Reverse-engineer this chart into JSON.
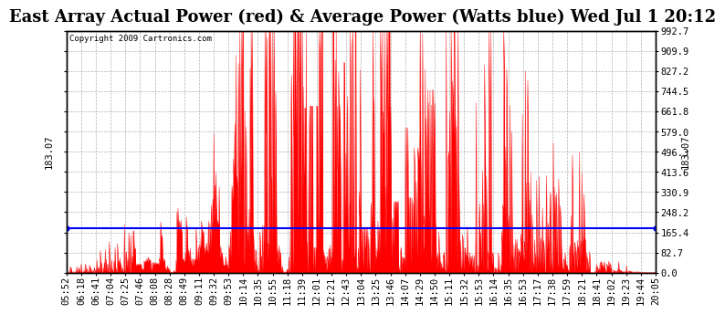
{
  "title": "East Array Actual Power (red) & Average Power (Watts blue) Wed Jul 1 20:12",
  "copyright": "Copyright 2009 Cartronics.com",
  "average_power": 183.07,
  "y_max": 992.7,
  "y_ticks": [
    0.0,
    82.7,
    165.4,
    248.2,
    330.9,
    413.6,
    496.3,
    579.0,
    661.8,
    744.5,
    827.2,
    909.9,
    992.7
  ],
  "x_labels": [
    "05:52",
    "06:18",
    "06:41",
    "07:04",
    "07:25",
    "07:46",
    "08:08",
    "08:28",
    "08:49",
    "09:11",
    "09:32",
    "09:53",
    "10:14",
    "10:35",
    "10:55",
    "11:18",
    "11:39",
    "12:01",
    "12:21",
    "12:43",
    "13:04",
    "13:25",
    "13:46",
    "14:07",
    "14:29",
    "14:50",
    "15:11",
    "15:32",
    "15:53",
    "16:14",
    "16:35",
    "16:53",
    "17:17",
    "17:38",
    "17:59",
    "18:21",
    "18:41",
    "19:02",
    "19:23",
    "19:44",
    "20:05"
  ],
  "bg_color": "#ffffff",
  "plot_bg_color": "#ffffff",
  "grid_color": "#aaaaaa",
  "line_color_red": "#ff0000",
  "line_color_blue": "#0000ff",
  "fill_color": "#ff0000",
  "title_fontsize": 13,
  "tick_fontsize": 7.5,
  "copyright_fontsize": 6.5,
  "border_color": "#000000"
}
